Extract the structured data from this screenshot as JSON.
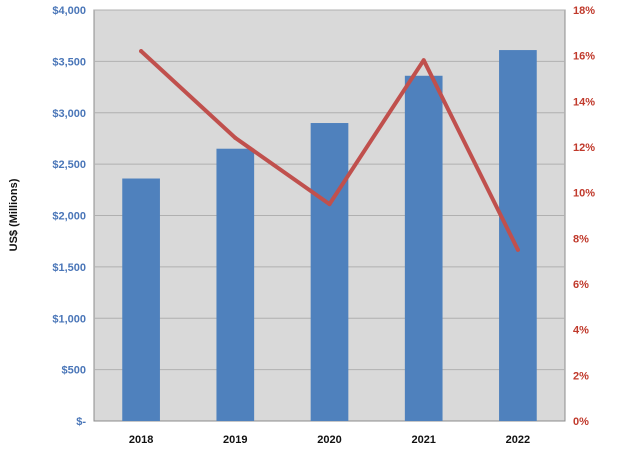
{
  "chart_data": {
    "type": "bar",
    "categories": [
      "2018",
      "2019",
      "2020",
      "2021",
      "2022"
    ],
    "series": [
      {
        "type": "bar",
        "axis": "left",
        "color": "#4f81bd",
        "values": [
          2360,
          2650,
          2900,
          3360,
          3610
        ]
      },
      {
        "type": "line",
        "axis": "right",
        "color": "#c0504d",
        "values": [
          16.2,
          12.4,
          9.5,
          15.8,
          7.5
        ]
      }
    ],
    "ylabel": "US$ (Millions)",
    "ylim": [
      0,
      4000
    ],
    "y2lim": [
      0,
      18
    ],
    "yticks": [
      0,
      500,
      1000,
      1500,
      2000,
      2500,
      3000,
      3500,
      4000
    ],
    "ytick_labels": [
      "$-",
      "$500",
      "$1,000",
      "$1,500",
      "$2,000",
      "$2,500",
      "$3,000",
      "$3,500",
      "$4,000"
    ],
    "y2ticks": [
      0,
      2,
      4,
      6,
      8,
      10,
      12,
      14,
      16,
      18
    ],
    "y2tick_labels": [
      "0%",
      "2%",
      "4%",
      "6%",
      "8%",
      "10%",
      "12%",
      "14%",
      "16%",
      "18%"
    ],
    "grid": true,
    "plot_background": "#d9d9d9",
    "gridline_color": "#b0b0b0",
    "left_tick_color": "#4a76b8",
    "right_tick_color": "#c0392b"
  }
}
